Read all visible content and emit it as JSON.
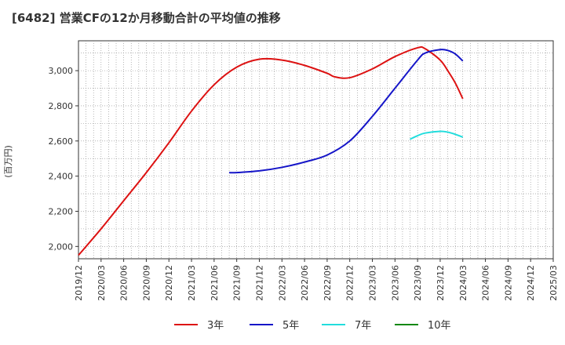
{
  "title": "[6482]  営業CFの12か月移動合計の平均値の推移",
  "chart_data": {
    "type": "line",
    "ylabel": "(百万円)",
    "xlabel": "",
    "ylim": [
      1930,
      3170
    ],
    "yticks": [
      2000,
      2200,
      2400,
      2600,
      2800,
      3000
    ],
    "ytick_labels": [
      "2,000",
      "2,200",
      "2,400",
      "2,600",
      "2,800",
      "3,000"
    ],
    "xticks": [
      "2019/12",
      "2020/03",
      "2020/06",
      "2020/09",
      "2020/12",
      "2021/03",
      "2021/06",
      "2021/09",
      "2021/12",
      "2022/03",
      "2022/06",
      "2022/09",
      "2022/12",
      "2023/03",
      "2023/06",
      "2023/09",
      "2023/12",
      "2024/03",
      "2024/06",
      "2024/09",
      "2024/12",
      "2025/03"
    ],
    "grid": true,
    "legend_position": "bottom",
    "series": [
      {
        "name": "3年",
        "color": "#dd1111",
        "x": [
          "2019/12",
          "2020/03",
          "2020/06",
          "2020/09",
          "2020/12",
          "2021/03",
          "2021/06",
          "2021/09",
          "2021/12",
          "2022/03",
          "2022/06",
          "2022/09",
          "2022/10",
          "2022/12",
          "2023/03",
          "2023/06",
          "2023/09",
          "2023/10",
          "2023/12",
          "2024/01",
          "2024/02",
          "2024/03"
        ],
        "values": [
          1950,
          2100,
          2260,
          2420,
          2590,
          2770,
          2920,
          3020,
          3065,
          3060,
          3030,
          2985,
          2965,
          2960,
          3010,
          3080,
          3130,
          3125,
          3060,
          3000,
          2930,
          2840
        ]
      },
      {
        "name": "5年",
        "color": "#1515c8",
        "x": [
          "2021/08",
          "2021/09",
          "2021/12",
          "2022/03",
          "2022/06",
          "2022/09",
          "2022/12",
          "2023/03",
          "2023/06",
          "2023/09",
          "2023/10",
          "2023/12",
          "2024/01",
          "2024/02",
          "2024/03"
        ],
        "values": [
          2420,
          2420,
          2430,
          2450,
          2480,
          2520,
          2600,
          2740,
          2900,
          3060,
          3100,
          3120,
          3115,
          3095,
          3055
        ]
      },
      {
        "name": "7年",
        "color": "#22dddd",
        "x": [
          "2023/08",
          "2023/09",
          "2023/10",
          "2023/12",
          "2024/01",
          "2024/02",
          "2024/03"
        ],
        "values": [
          2610,
          2630,
          2645,
          2655,
          2650,
          2638,
          2622
        ]
      },
      {
        "name": "10年",
        "color": "#118811",
        "x": [],
        "values": []
      }
    ]
  }
}
